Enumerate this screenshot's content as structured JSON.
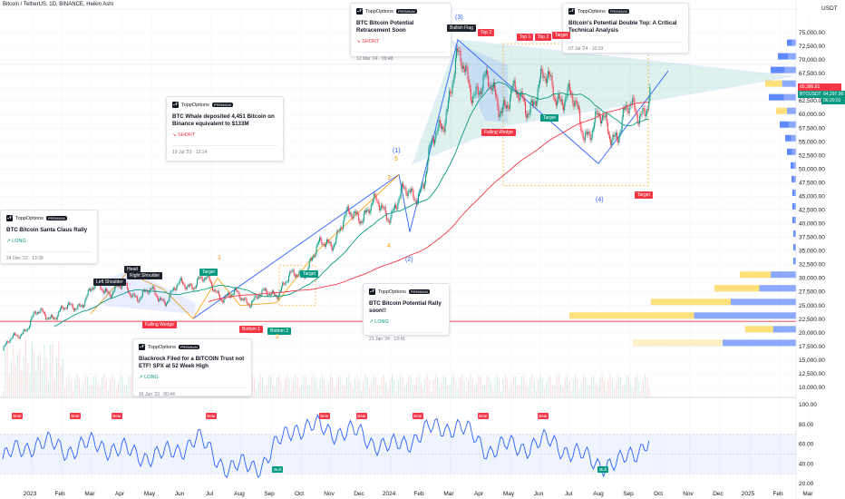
{
  "header": {
    "symbol_line": "Bitcoin / TetherUS, 1D, BINANCE, Heikin Ashi"
  },
  "price_axis": {
    "currency": "USDT",
    "ticks": [
      "75,000.00",
      "72,500.00",
      "70,000.00",
      "67,500.00",
      "65,000.00",
      "62,500.00",
      "60,000.00",
      "57,500.00",
      "55,000.00",
      "52,500.00",
      "50,000.00",
      "47,500.00",
      "45,000.00",
      "42,500.00",
      "40,000.00",
      "37,500.00",
      "35,000.00",
      "32,500.00",
      "30,000.00",
      "27,500.00",
      "25,000.00",
      "22,500.00",
      "20,000.00",
      "17,500.00",
      "15,000.00",
      "12,500.00",
      "10,000.00"
    ],
    "tag_high": "65,386.81",
    "tag_symbol": "BTCUSDT",
    "tag_price": "64,297.96",
    "tag_time": "06:20:01"
  },
  "rsi_axis": {
    "ticks": [
      "100.00",
      "80.00",
      "60.00",
      "40.00",
      "20.00"
    ]
  },
  "time_axis": {
    "labels": [
      "2023",
      "Feb",
      "Mar",
      "Apr",
      "May",
      "Jun",
      "Jul",
      "Aug",
      "Sep",
      "Oct",
      "Nov",
      "Dec",
      "2024",
      "Feb",
      "Mar",
      "Apr",
      "May",
      "Jun",
      "Jul",
      "Aug",
      "Sep",
      "Oct",
      "Nov",
      "Dec",
      "2025",
      "Feb",
      "Mar"
    ]
  },
  "cards": [
    {
      "brand": "ToppOptions",
      "badge": "PREMIUM",
      "title": "BTC Bitcoin Santa Claus Rally",
      "side": "LONG",
      "date": "24 Dec '22 · 13:39"
    },
    {
      "brand": "ToppOptions",
      "badge": "PREMIUM",
      "title": "BTC Whale deposited 4,451 Bitcoin on Binance equivalent to $133M",
      "side": "SHORT",
      "date": "19 Jul '23 · 12:14"
    },
    {
      "brand": "ToppOptions",
      "badge": "PREMIUM",
      "title": "Blackrock Filed for a BITCOIN Trust not ETF! SPX at 52 Week High",
      "side": "LONG",
      "date": "16 Jun '23 · 00:44"
    },
    {
      "brand": "ToppOptions",
      "badge": "PREMIUM",
      "title": "BTC Bitcoin Potential Retracement Soon",
      "side": "SHORT",
      "date": "12 Mar '24 · 09:48"
    },
    {
      "brand": "ToppOptions",
      "badge": "PREMIUM",
      "title": "BTC Bitcoin Potential Rally soon!!",
      "side": "LONG",
      "date": "21 Jan '24 · 13:41"
    },
    {
      "brand": "ToppOptions",
      "badge": "PREMIUM",
      "title": "Bitcoin's Potential Double Top: A Critical Technical Analysis",
      "side": "",
      "date": "07 Jul '24 · 10:19"
    }
  ],
  "pattern_labels": {
    "left_shoulder": "Left Shoulder",
    "head": "Head",
    "right_shoulder": "Right Shoulder",
    "falling_wedge_1": "Falling Wedge",
    "falling_wedge_2": "Falling Wedge",
    "target_1": "Target",
    "target_2": "Target",
    "target_3": "Target",
    "target_4": "Target",
    "target_5": "Target",
    "bottom_1": "Bottom 1",
    "bottom_2": "Bottom 2",
    "bullish_flag": "Bullish Flag",
    "top_1": "Top 1",
    "top_2": "Top 2",
    "top_2b": "Top 2",
    "top_1b": "Top 1"
  },
  "waves": {
    "w1": "1",
    "w2": "2",
    "w3": "3",
    "w4": "4",
    "w5": "5",
    "w1p": "(1)",
    "w2p": "(2)",
    "w3p": "(3)",
    "w4p": "(4)"
  },
  "rsi_labels": {
    "bear": "Bear",
    "bull": "Bull"
  },
  "colors": {
    "up": "#089981",
    "down": "#f23645",
    "blue": "#2962ff",
    "orange": "#ff9800",
    "green_ma": "#089981",
    "red_ma": "#f23645"
  },
  "chart_data": {
    "type": "line",
    "title": "Bitcoin / TetherUS, 1D, BINANCE, Heikin Ashi",
    "x": [
      "2023-01",
      "2023-02",
      "2023-03",
      "2023-04",
      "2023-05",
      "2023-06",
      "2023-07",
      "2023-08",
      "2023-09",
      "2023-10",
      "2023-11",
      "2023-12",
      "2024-01",
      "2024-02",
      "2024-03",
      "2024-04",
      "2024-05",
      "2024-06",
      "2024-07",
      "2024-08",
      "2024-09"
    ],
    "series": [
      {
        "values": [
          16800,
          23000,
          24000,
          28500,
          27500,
          26500,
          30000,
          26500,
          26300,
          30000,
          36500,
          42500,
          42800,
          47500,
          68500,
          64000,
          62000,
          66000,
          58000,
          57500,
          63500
        ]
      }
    ],
    "rsi": [
      45,
      62,
      55,
      60,
      50,
      48,
      65,
      35,
      40,
      78,
      75,
      70,
      55,
      72,
      80,
      55,
      58,
      62,
      45,
      38,
      66
    ],
    "ylim": [
      10000,
      77000
    ],
    "rsi_ylim": [
      0,
      100
    ]
  }
}
